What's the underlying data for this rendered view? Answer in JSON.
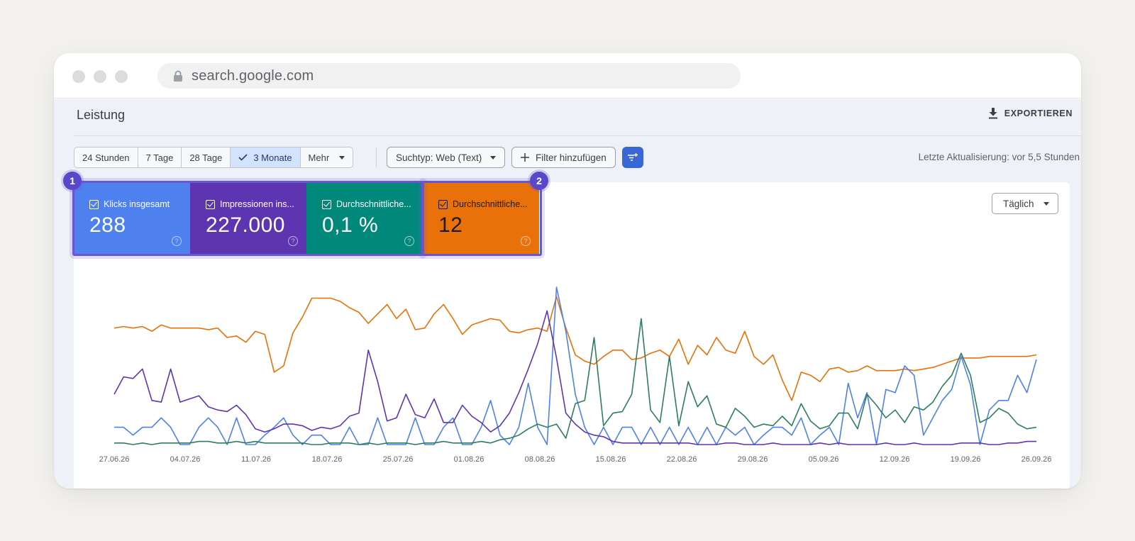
{
  "browser": {
    "url": "search.google.com"
  },
  "header": {
    "title": "Leistung",
    "export_label": "EXPORTIEREN"
  },
  "toolbar": {
    "ranges": [
      {
        "label": "24 Stunden",
        "selected": false
      },
      {
        "label": "7 Tage",
        "selected": false
      },
      {
        "label": "28 Tage",
        "selected": false
      },
      {
        "label": "3 Monate",
        "selected": true
      },
      {
        "label": "Mehr",
        "selected": false
      }
    ],
    "search_type": "Suchtyp: Web (Text)",
    "add_filter": "Filter hinzufügen",
    "last_update": "Letzte Aktualisierung: vor 5,5 Stunden"
  },
  "metrics": [
    {
      "label": "Klicks insgesamt",
      "value": "288",
      "color": "#4e81ee"
    },
    {
      "label": "Impressionen ins...",
      "value": "227.000",
      "color": "#5e35b1"
    },
    {
      "label": "Durchschnittliche...",
      "value": "0,1 %",
      "color": "#00897b"
    },
    {
      "label": "Durchschnittliche...",
      "value": "12",
      "color": "#e8710a"
    }
  ],
  "badges": [
    "1",
    "2"
  ],
  "granularity": "Täglich",
  "chart_data": {
    "type": "line",
    "x_ticks": [
      "27.06.26",
      "04.07.26",
      "11.07.26",
      "18.07.26",
      "25.07.26",
      "01.08.26",
      "08.08.26",
      "15.08.26",
      "22.08.26",
      "29.08.26",
      "05.09.26",
      "12.09.26",
      "19.09.26",
      "26.09.26"
    ],
    "ylim": [
      0,
      100
    ],
    "grid": false,
    "series": [
      {
        "color": "#e8710a",
        "values": [
          74,
          75,
          74,
          75,
          72,
          76,
          74,
          74,
          74,
          74,
          73,
          74,
          68,
          69,
          65,
          72,
          70,
          46,
          50,
          71,
          81,
          93,
          93,
          93,
          91,
          87,
          84,
          77,
          83,
          89,
          80,
          86,
          73,
          74,
          83,
          89,
          80,
          70,
          76,
          78,
          80,
          79,
          72,
          71,
          73,
          74,
          72,
          94,
          74,
          57,
          53,
          51,
          56,
          60,
          60,
          54,
          55,
          58,
          60,
          56,
          67,
          51,
          63,
          57,
          68,
          60,
          58,
          72,
          56,
          51,
          57,
          41,
          28,
          46,
          44,
          40,
          48,
          49,
          46,
          47,
          50,
          47,
          47,
          47,
          48,
          47,
          48,
          49,
          51,
          53,
          55,
          55,
          55,
          56,
          56,
          56,
          56,
          56,
          57
        ]
      },
      {
        "color": "#4e81ee",
        "values": [
          11,
          11,
          6,
          11,
          11,
          17,
          11,
          0,
          0,
          11,
          17,
          11,
          0,
          17,
          0,
          0,
          6,
          11,
          17,
          6,
          0,
          6,
          6,
          0,
          0,
          11,
          0,
          0,
          17,
          0,
          0,
          0,
          17,
          0,
          0,
          11,
          17,
          0,
          0,
          11,
          28,
          6,
          0,
          11,
          39,
          11,
          0,
          100,
          72,
          32,
          11,
          0,
          11,
          0,
          11,
          11,
          0,
          11,
          0,
          11,
          0,
          11,
          0,
          11,
          0,
          11,
          6,
          11,
          0,
          6,
          11,
          11,
          6,
          17,
          0,
          6,
          11,
          0,
          39,
          17,
          33,
          0,
          35,
          33,
          50,
          44,
          6,
          17,
          28,
          35,
          56,
          38,
          0,
          22,
          28,
          28,
          44,
          33,
          54
        ]
      },
      {
        "color": "#5e35b1",
        "values": [
          32,
          43,
          42,
          48,
          28,
          27,
          48,
          27,
          29,
          31,
          24,
          22,
          21,
          25,
          19,
          10,
          8,
          10,
          13,
          13,
          12,
          9,
          11,
          10,
          12,
          18,
          20,
          60,
          40,
          15,
          17,
          32,
          19,
          17,
          29,
          14,
          14,
          25,
          18,
          14,
          8,
          12,
          20,
          33,
          48,
          64,
          85,
          55,
          20,
          13,
          8,
          6,
          5,
          2,
          1,
          1,
          1,
          1,
          1,
          1,
          1,
          1,
          0,
          0,
          0,
          1,
          1,
          0,
          0,
          0,
          1,
          0,
          0,
          0,
          0,
          1,
          0,
          1,
          0,
          0,
          0,
          0,
          1,
          0,
          0,
          1,
          0,
          0,
          0,
          0,
          1,
          1,
          1,
          0,
          0,
          1,
          1,
          2,
          2
        ]
      },
      {
        "color": "#2e7d5b",
        "values": [
          1,
          1,
          0,
          1,
          0,
          1,
          1,
          1,
          1,
          2,
          2,
          1,
          1,
          2,
          1,
          2,
          1,
          1,
          1,
          1,
          1,
          0,
          0,
          1,
          1,
          1,
          0,
          1,
          0,
          1,
          1,
          1,
          0,
          1,
          1,
          2,
          1,
          1,
          1,
          2,
          1,
          3,
          4,
          6,
          10,
          13,
          11,
          13,
          4,
          26,
          28,
          68,
          12,
          20,
          21,
          32,
          80,
          22,
          14,
          56,
          12,
          40,
          24,
          31,
          13,
          11,
          23,
          18,
          11,
          13,
          12,
          18,
          12,
          26,
          15,
          10,
          12,
          20,
          20,
          10,
          32,
          25,
          17,
          22,
          14,
          24,
          22,
          27,
          37,
          44,
          58,
          44,
          14,
          17,
          23,
          20,
          13,
          10,
          11
        ]
      }
    ]
  }
}
